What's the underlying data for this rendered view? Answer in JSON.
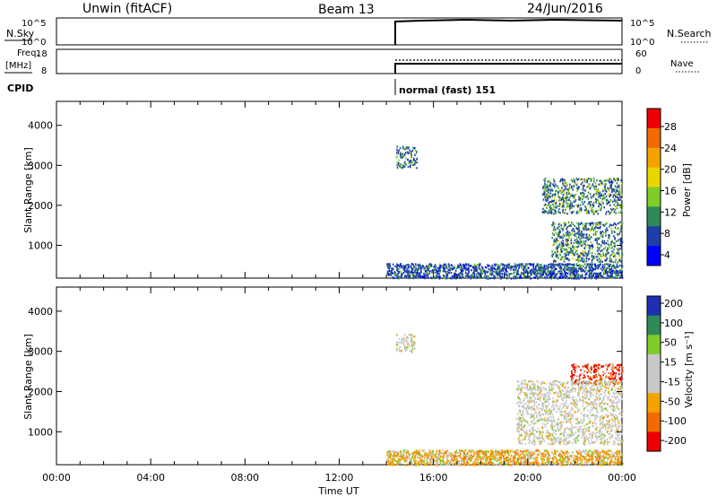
{
  "header": {
    "station": "Unwin (fitACF)",
    "beam": "Beam 13",
    "date": "24/Jun/2016"
  },
  "top_panels": {
    "nsky_label": "N.Sky",
    "nsky_ticks": [
      "10^5",
      "10^0"
    ],
    "nsearch_label": "N.Search",
    "nsearch_ticks": [
      "10^5",
      "10^0"
    ],
    "freq_label": "Freq.",
    "freq_unit": "[MHz]",
    "freq_ticks": [
      "18",
      "8"
    ],
    "nave_label": "Nave",
    "nave_ticks": [
      "60",
      "0"
    ],
    "cpid_label": "CPID",
    "cpid_value": "normal (fast) 151"
  },
  "chart_data": [
    {
      "type": "heatmap",
      "name": "power",
      "ylabel": "Slant Range [km]",
      "xlabel": "",
      "xlim_hours": [
        0,
        24
      ],
      "ylim_km": [
        180,
        4600
      ],
      "yticks": [
        "4000",
        "3000",
        "2000",
        "1000"
      ],
      "ytick_values": [
        4000,
        3000,
        2000,
        1000
      ],
      "colorbar": {
        "label": "Power [dB]",
        "ticks": [
          "28",
          "24",
          "20",
          "16",
          "12",
          "8",
          "4"
        ],
        "range": [
          0,
          30
        ],
        "colors": [
          "#ee0000",
          "#f26a00",
          "#f5a300",
          "#e9d600",
          "#7fcc2a",
          "#2e8b57",
          "#1e3fa8",
          "#0000ff"
        ]
      },
      "data_start_hour": 14.0,
      "echo_regions": [
        {
          "t0": 14.0,
          "t1": 24.0,
          "r0": 190,
          "r1": 560,
          "level": "high"
        },
        {
          "t0": 14.4,
          "t1": 15.3,
          "r0": 2950,
          "r1": 3500,
          "level": "mid"
        },
        {
          "t0": 20.6,
          "t1": 24.0,
          "r0": 1800,
          "r1": 2700,
          "level": "mid"
        },
        {
          "t0": 21.0,
          "t1": 24.0,
          "r0": 600,
          "r1": 1600,
          "level": "mid"
        }
      ]
    },
    {
      "type": "heatmap",
      "name": "velocity",
      "ylabel": "Slant Range [km]",
      "xlabel": "Time UT",
      "xlim_hours": [
        0,
        24
      ],
      "ylim_km": [
        180,
        4600
      ],
      "xticks": [
        "00:00",
        "04:00",
        "08:00",
        "12:00",
        "16:00",
        "20:00",
        "00:00"
      ],
      "xtick_values": [
        0,
        4,
        8,
        12,
        16,
        20,
        24
      ],
      "yticks": [
        "4000",
        "3000",
        "2000",
        "1000"
      ],
      "ytick_values": [
        4000,
        3000,
        2000,
        1000
      ],
      "colorbar": {
        "label": "Velocity [m s⁻¹]",
        "ticks": [
          "200",
          "100",
          "50",
          "15",
          "-15",
          "-50",
          "-100",
          "-200"
        ],
        "range": [
          -250,
          250
        ],
        "colors": [
          "#1e2fb0",
          "#2e8b57",
          "#7fcc2a",
          "#c8c8c8",
          "#c8c8c8",
          "#f5a300",
          "#f26a00",
          "#ee0000"
        ]
      },
      "data_start_hour": 14.0,
      "echo_regions": [
        {
          "t0": 14.0,
          "t1": 24.0,
          "r0": 190,
          "r1": 560,
          "level": "negative"
        },
        {
          "t0": 14.4,
          "t1": 15.2,
          "r0": 3000,
          "r1": 3450,
          "level": "near-zero"
        },
        {
          "t0": 21.8,
          "t1": 24.0,
          "r0": 2200,
          "r1": 2700,
          "level": "strong-negative"
        },
        {
          "t0": 19.5,
          "t1": 24.0,
          "r0": 700,
          "r1": 2300,
          "level": "near-zero"
        }
      ]
    }
  ]
}
